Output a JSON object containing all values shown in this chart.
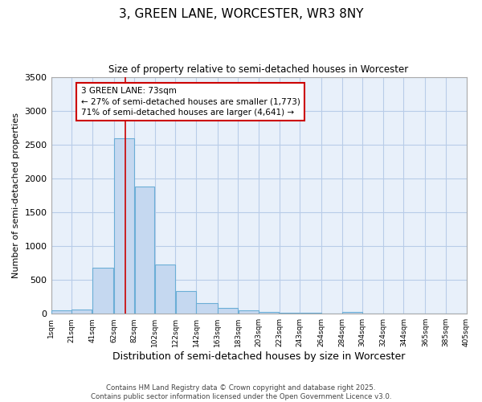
{
  "title": "3, GREEN LANE, WORCESTER, WR3 8NY",
  "subtitle": "Size of property relative to semi-detached houses in Worcester",
  "xlabel": "Distribution of semi-detached houses by size in Worcester",
  "ylabel": "Number of semi-detached properties",
  "bar_color": "#c5d8f0",
  "bar_edge_color": "#6baed6",
  "background_color": "#e8f0fa",
  "grid_color": "#b8cce8",
  "annotation_line_color": "#cc0000",
  "annotation_box_color": "#cc0000",
  "bins": [
    1,
    21,
    41,
    62,
    82,
    102,
    122,
    142,
    163,
    183,
    203,
    223,
    243,
    264,
    284,
    304,
    324,
    344,
    365,
    385,
    405
  ],
  "values": [
    55,
    60,
    680,
    2590,
    1880,
    730,
    340,
    155,
    90,
    55,
    30,
    20,
    10,
    0,
    25,
    0,
    0,
    0,
    0,
    0
  ],
  "property_size": 73,
  "property_label": "3 GREEN LANE: 73sqm",
  "smaller_pct": 27,
  "smaller_n": 1773,
  "larger_pct": 71,
  "larger_n": 4641,
  "ylim": [
    0,
    3500
  ],
  "yticks": [
    0,
    500,
    1000,
    1500,
    2000,
    2500,
    3000,
    3500
  ],
  "footer_line1": "Contains HM Land Registry data © Crown copyright and database right 2025.",
  "footer_line2": "Contains public sector information licensed under the Open Government Licence v3.0."
}
